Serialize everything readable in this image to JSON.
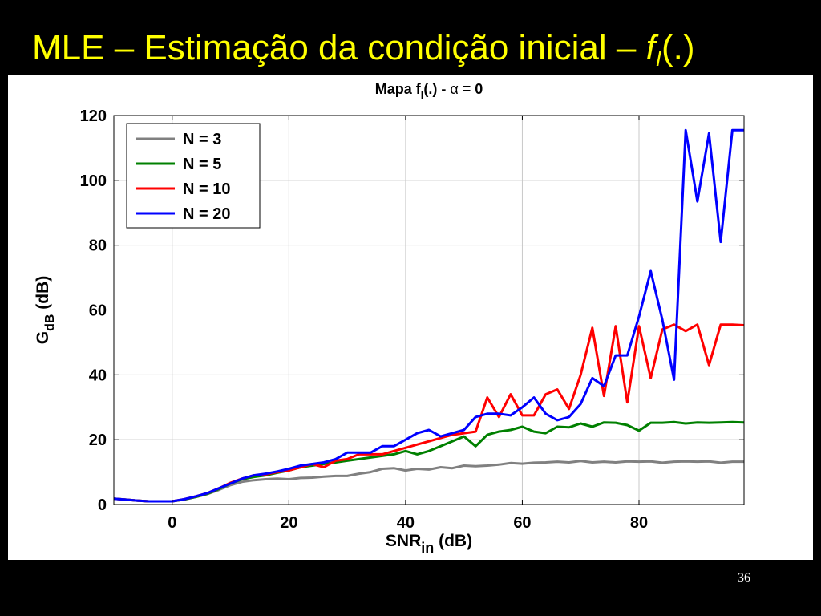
{
  "slide": {
    "title_main": "MLE – Estimação da condição inicial – ",
    "title_f": "f",
    "title_sub": "I",
    "title_tail": "(.)",
    "page_number": "36"
  },
  "colors": {
    "background": "#000000",
    "title": "#ffff00",
    "N3": "#808080",
    "N5": "#008000",
    "N10": "#ff0000",
    "N20": "#0000ff"
  },
  "chart_data": {
    "type": "line",
    "title_main": "Mapa f",
    "title_sub": "I",
    "title_tail": "(.) - ",
    "title_symbol": "α",
    "title_end": " = 0",
    "xlabel_main": "SNR",
    "xlabel_sub": "in",
    "xlabel_tail": " (dB)",
    "ylabel_main": "G",
    "ylabel_sub": "dB",
    "ylabel_tail": " (dB)",
    "xlim": [
      -10,
      98
    ],
    "ylim": [
      0,
      120
    ],
    "xticks": [
      0,
      20,
      40,
      60,
      80
    ],
    "yticks": [
      0,
      20,
      40,
      60,
      80,
      100,
      120
    ],
    "grid": true,
    "legend_position": "top-left",
    "x": [
      -10,
      -8,
      -6,
      -4,
      -2,
      0,
      2,
      4,
      6,
      8,
      10,
      12,
      14,
      16,
      18,
      20,
      22,
      24,
      26,
      28,
      30,
      32,
      34,
      36,
      38,
      40,
      42,
      44,
      46,
      48,
      50,
      52,
      54,
      56,
      58,
      60,
      62,
      64,
      66,
      68,
      70,
      72,
      74,
      76,
      78,
      80,
      82,
      84,
      86,
      88,
      90,
      92,
      94,
      96,
      98
    ],
    "series": [
      {
        "name": "N = 3",
        "color": "#808080",
        "values": [
          1.8,
          1.5,
          1.2,
          1.0,
          1.0,
          1.0,
          1.5,
          2.3,
          3.2,
          4.5,
          6.0,
          7.0,
          7.5,
          7.8,
          8.0,
          7.8,
          8.2,
          8.3,
          8.6,
          8.8,
          8.8,
          9.5,
          10.0,
          11.0,
          11.2,
          10.5,
          11.0,
          10.8,
          11.5,
          11.2,
          12.0,
          11.8,
          12.0,
          12.3,
          12.8,
          12.6,
          12.9,
          13.0,
          13.2,
          13.0,
          13.4,
          13.0,
          13.2,
          13.0,
          13.3,
          13.2,
          13.3,
          12.9,
          13.2,
          13.3,
          13.2,
          13.3,
          12.9,
          13.2,
          13.2
        ]
      },
      {
        "name": "N = 5",
        "color": "#008000",
        "values": [
          1.8,
          1.5,
          1.2,
          1.0,
          1.0,
          1.0,
          1.5,
          2.3,
          3.3,
          4.8,
          6.5,
          7.8,
          8.5,
          9.0,
          9.8,
          10.5,
          11.5,
          12.0,
          12.5,
          13.0,
          13.5,
          14.0,
          14.5,
          15.0,
          15.5,
          16.5,
          15.5,
          16.5,
          18.0,
          19.5,
          21.0,
          18.0,
          21.5,
          22.5,
          23.0,
          24.0,
          22.5,
          22.0,
          24.0,
          23.8,
          25.0,
          24.0,
          25.3,
          25.2,
          24.5,
          22.8,
          25.2,
          25.2,
          25.4,
          25.0,
          25.3,
          25.2,
          25.3,
          25.4,
          25.3
        ]
      },
      {
        "name": "N = 10",
        "color": "#ff0000",
        "values": [
          1.8,
          1.5,
          1.2,
          1.0,
          1.0,
          1.0,
          1.6,
          2.5,
          3.5,
          5.0,
          6.7,
          8.0,
          9.0,
          9.3,
          10.0,
          10.5,
          11.5,
          12.5,
          11.5,
          13.5,
          14.0,
          15.5,
          15.5,
          15.5,
          16.5,
          17.5,
          18.5,
          19.5,
          20.5,
          21.5,
          22.0,
          22.5,
          33.0,
          27.0,
          34.0,
          27.5,
          27.5,
          34.0,
          35.5,
          29.5,
          40.0,
          54.5,
          33.5,
          55.0,
          31.5,
          55.0,
          39.0,
          54.0,
          55.5,
          53.5,
          55.5,
          43.0,
          55.5,
          55.5,
          55.3
        ]
      },
      {
        "name": "N = 20",
        "color": "#0000ff",
        "values": [
          1.8,
          1.5,
          1.2,
          1.0,
          1.0,
          1.0,
          1.6,
          2.5,
          3.5,
          5.0,
          6.5,
          8.0,
          9.0,
          9.5,
          10.2,
          11.0,
          12.0,
          12.5,
          13.0,
          14.0,
          16.0,
          16.0,
          16.0,
          18.0,
          18.0,
          20.0,
          22.0,
          23.0,
          21.0,
          22.0,
          23.0,
          27.0,
          28.0,
          28.0,
          27.5,
          30.0,
          33.0,
          28.0,
          26.0,
          27.0,
          31.0,
          39.0,
          36.5,
          46.0,
          46.0,
          58.0,
          72.0,
          57.0,
          38.5,
          115.5,
          93.5,
          114.5,
          81.0,
          115.5,
          115.5
        ]
      }
    ]
  }
}
